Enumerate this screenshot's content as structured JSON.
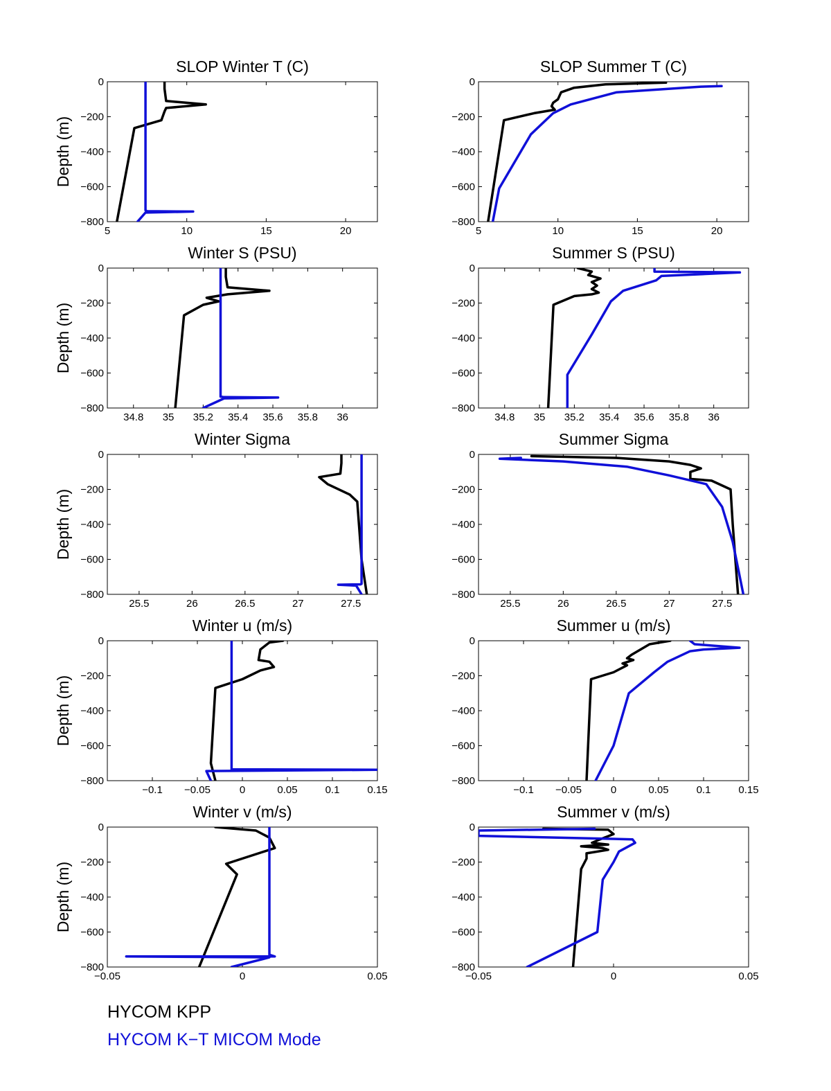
{
  "chart_data": [
    {
      "type": "line",
      "title": "SLOP Winter T (C)",
      "xlabel": "",
      "ylabel": "Depth (m)",
      "xlim": [
        5,
        22
      ],
      "ylim": [
        -800,
        0
      ],
      "xticks": [
        5,
        10,
        15,
        20
      ],
      "xtick_labels": [
        "5",
        "10",
        "15",
        "20"
      ],
      "yticks": [
        -800,
        -600,
        -400,
        -200,
        0
      ],
      "ytick_labels": [
        "−800",
        "−600",
        "−400",
        "−200",
        "0"
      ],
      "series": [
        {
          "name": "HYCOM KPP",
          "color": "#000000",
          "x": [
            8.6,
            8.6,
            8.7,
            11.2,
            8.7,
            8.6,
            8.4,
            6.7,
            5.6
          ],
          "y": [
            0,
            -40,
            -110,
            -130,
            -150,
            -170,
            -220,
            -265,
            -800
          ]
        },
        {
          "name": "HYCOM K-T MICOM Mode",
          "color": "#1010d8",
          "x": [
            7.4,
            7.4,
            7.5,
            10.4,
            7.4,
            6.9
          ],
          "y": [
            0,
            -735,
            -740,
            -742,
            -748,
            -800
          ]
        }
      ]
    },
    {
      "type": "line",
      "title": "SLOP Summer T (C)",
      "xlabel": "",
      "ylabel": "",
      "xlim": [
        5,
        22
      ],
      "ylim": [
        -800,
        0
      ],
      "xticks": [
        5,
        10,
        15,
        20
      ],
      "xtick_labels": [
        "5",
        "10",
        "15",
        "20"
      ],
      "yticks": [
        -800,
        -600,
        -400,
        -200,
        0
      ],
      "ytick_labels": [
        "−800",
        "−600",
        "−400",
        "−200",
        "0"
      ],
      "series": [
        {
          "name": "HYCOM KPP",
          "color": "#000000",
          "x": [
            16.8,
            13.0,
            11.0,
            10.2,
            10.1,
            10.0,
            9.7,
            9.6,
            9.8,
            8.5,
            6.6,
            5.6
          ],
          "y": [
            -5,
            -15,
            -35,
            -60,
            -80,
            -100,
            -120,
            -140,
            -160,
            -180,
            -220,
            -800
          ]
        },
        {
          "name": "HYCOM K-T MICOM Mode",
          "color": "#1010d8",
          "x": [
            20.3,
            19.0,
            13.7,
            10.8,
            9.7,
            8.3,
            6.3,
            5.9
          ],
          "y": [
            -25,
            -28,
            -60,
            -130,
            -180,
            -300,
            -610,
            -800
          ]
        }
      ]
    },
    {
      "type": "line",
      "title": "Winter S (PSU)",
      "xlabel": "",
      "ylabel": "Depth (m)",
      "xlim": [
        34.65,
        36.2
      ],
      "ylim": [
        -800,
        0
      ],
      "xticks": [
        34.8,
        35,
        35.2,
        35.4,
        35.6,
        35.8,
        36
      ],
      "xtick_labels": [
        "34.8",
        "35",
        "35.2",
        "35.4",
        "35.6",
        "35.8",
        "36"
      ],
      "yticks": [
        -800,
        -600,
        -400,
        -200,
        0
      ],
      "ytick_labels": [
        "−800",
        "−600",
        "−400",
        "−200",
        "0"
      ],
      "series": [
        {
          "name": "HYCOM KPP",
          "color": "#000000",
          "x": [
            35.33,
            35.33,
            35.34,
            35.58,
            35.34,
            35.22,
            35.29,
            35.2,
            35.09,
            35.04
          ],
          "y": [
            0,
            -50,
            -110,
            -130,
            -150,
            -170,
            -190,
            -210,
            -270,
            -800
          ]
        },
        {
          "name": "HYCOM K-T MICOM Mode",
          "color": "#1010d8",
          "x": [
            35.3,
            35.3,
            35.32,
            35.63,
            35.32,
            35.2
          ],
          "y": [
            0,
            -735,
            -738,
            -740,
            -745,
            -800
          ]
        }
      ]
    },
    {
      "type": "line",
      "title": "Summer S (PSU)",
      "xlabel": "",
      "ylabel": "",
      "xlim": [
        34.65,
        36.2
      ],
      "ylim": [
        -800,
        0
      ],
      "xticks": [
        34.8,
        35,
        35.2,
        35.4,
        35.6,
        35.8,
        36
      ],
      "xtick_labels": [
        "34.8",
        "35",
        "35.2",
        "35.4",
        "35.6",
        "35.8",
        "36"
      ],
      "yticks": [
        -800,
        -600,
        -400,
        -200,
        0
      ],
      "ytick_labels": [
        "−800",
        "−600",
        "−400",
        "−200",
        "0"
      ],
      "series": [
        {
          "name": "HYCOM KPP",
          "color": "#000000",
          "x": [
            35.22,
            35.3,
            35.28,
            35.35,
            35.3,
            35.33,
            35.3,
            35.34,
            35.3,
            35.2,
            35.08,
            35.05
          ],
          "y": [
            0,
            -20,
            -40,
            -60,
            -80,
            -100,
            -120,
            -140,
            -150,
            -160,
            -210,
            -800
          ]
        },
        {
          "name": "HYCOM K-T MICOM Mode",
          "color": "#1010d8",
          "x": [
            35.66,
            35.66,
            36.15,
            35.7,
            35.67,
            35.48,
            35.41,
            35.3,
            35.16,
            35.16
          ],
          "y": [
            0,
            -20,
            -25,
            -45,
            -70,
            -130,
            -190,
            -380,
            -610,
            -800
          ]
        }
      ]
    },
    {
      "type": "line",
      "title": "Winter Sigma",
      "xlabel": "",
      "ylabel": "Depth (m)",
      "xlim": [
        25.2,
        27.75
      ],
      "ylim": [
        -800,
        0
      ],
      "xticks": [
        25.5,
        26,
        26.5,
        27,
        27.5
      ],
      "xtick_labels": [
        "25.5",
        "26",
        "26.5",
        "27",
        "27.5"
      ],
      "yticks": [
        -800,
        -600,
        -400,
        -200,
        0
      ],
      "ytick_labels": [
        "−800",
        "−600",
        "−400",
        "−200",
        "0"
      ],
      "series": [
        {
          "name": "HYCOM KPP",
          "color": "#000000",
          "x": [
            27.41,
            27.41,
            27.4,
            27.2,
            27.28,
            27.49,
            27.56,
            27.6,
            27.65
          ],
          "y": [
            0,
            -50,
            -110,
            -130,
            -170,
            -230,
            -270,
            -600,
            -800
          ]
        },
        {
          "name": "HYCOM K-T MICOM Mode",
          "color": "#1010d8",
          "x": [
            27.6,
            27.6,
            27.59,
            27.38,
            27.55,
            27.6
          ],
          "y": [
            0,
            -740,
            -743,
            -745,
            -750,
            -800
          ]
        }
      ]
    },
    {
      "type": "line",
      "title": "Summer Sigma",
      "xlabel": "",
      "ylabel": "",
      "xlim": [
        25.2,
        27.75
      ],
      "ylim": [
        -800,
        0
      ],
      "xticks": [
        25.5,
        26,
        26.5,
        27,
        27.5
      ],
      "xtick_labels": [
        "25.5",
        "26",
        "26.5",
        "27",
        "27.5"
      ],
      "yticks": [
        -800,
        -600,
        -400,
        -200,
        0
      ],
      "ytick_labels": [
        "−800",
        "−600",
        "−400",
        "−200",
        "0"
      ],
      "series": [
        {
          "name": "HYCOM KPP",
          "color": "#000000",
          "x": [
            25.7,
            26.5,
            27.0,
            27.2,
            27.3,
            27.2,
            27.2,
            27.4,
            27.58,
            27.6,
            27.65
          ],
          "y": [
            -10,
            -20,
            -40,
            -60,
            -80,
            -100,
            -140,
            -150,
            -200,
            -400,
            -800
          ]
        },
        {
          "name": "HYCOM K-T MICOM Mode",
          "color": "#1010d8",
          "x": [
            25.6,
            25.4,
            26.0,
            26.6,
            27.0,
            27.35,
            27.5,
            27.6,
            27.7
          ],
          "y": [
            -20,
            -25,
            -40,
            -70,
            -120,
            -170,
            -300,
            -500,
            -800
          ]
        }
      ]
    },
    {
      "type": "line",
      "title": "Winter u (m/s)",
      "xlabel": "",
      "ylabel": "Depth (m)",
      "xlim": [
        -0.15,
        0.15
      ],
      "ylim": [
        -800,
        0
      ],
      "xticks": [
        -0.1,
        -0.05,
        0,
        0.05,
        0.1,
        0.15
      ],
      "xtick_labels": [
        "−0.1",
        "−0.05",
        "0",
        "0.05",
        "0.1",
        "0.15"
      ],
      "yticks": [
        -800,
        -600,
        -400,
        -200,
        0
      ],
      "ytick_labels": [
        "−800",
        "−600",
        "−400",
        "−200",
        "0"
      ],
      "series": [
        {
          "name": "HYCOM KPP",
          "color": "#000000",
          "x": [
            0.045,
            0.03,
            0.02,
            0.018,
            0.03,
            0.035,
            0.02,
            0.0,
            -0.03,
            -0.035,
            -0.03
          ],
          "y": [
            0,
            -10,
            -50,
            -110,
            -120,
            -150,
            -170,
            -220,
            -270,
            -700,
            -800
          ]
        },
        {
          "name": "HYCOM K-T MICOM Mode",
          "color": "#1010d8",
          "x": [
            -0.012,
            -0.012,
            0.15,
            -0.04,
            -0.035
          ],
          "y": [
            0,
            -735,
            -738,
            -745,
            -800
          ]
        }
      ]
    },
    {
      "type": "line",
      "title": "Summer u (m/s)",
      "xlabel": "",
      "ylabel": "",
      "xlim": [
        -0.15,
        0.15
      ],
      "ylim": [
        -800,
        0
      ],
      "xticks": [
        -0.1,
        -0.05,
        0,
        0.05,
        0.1,
        0.15
      ],
      "xtick_labels": [
        "−0.1",
        "−0.05",
        "0",
        "0.05",
        "0.1",
        "0.15"
      ],
      "yticks": [
        -800,
        -600,
        -400,
        -200,
        0
      ],
      "ytick_labels": [
        "−800",
        "−600",
        "−400",
        "−200",
        "0"
      ],
      "series": [
        {
          "name": "HYCOM KPP",
          "color": "#000000",
          "x": [
            0.063,
            0.04,
            0.03,
            0.02,
            0.015,
            0.022,
            0.01,
            0.015,
            0.0,
            -0.025,
            -0.03
          ],
          "y": [
            0,
            -20,
            -50,
            -80,
            -100,
            -110,
            -130,
            -140,
            -180,
            -220,
            -800
          ]
        },
        {
          "name": "HYCOM K-T MICOM Mode",
          "color": "#1010d8",
          "x": [
            0.085,
            0.09,
            0.14,
            0.1,
            0.085,
            0.06,
            0.045,
            0.017,
            0.0,
            -0.02
          ],
          "y": [
            0,
            -20,
            -40,
            -50,
            -60,
            -120,
            -180,
            -300,
            -600,
            -800
          ]
        }
      ]
    },
    {
      "type": "line",
      "title": "Winter v (m/s)",
      "xlabel": "",
      "ylabel": "Depth (m)",
      "xlim": [
        -0.05,
        0.05
      ],
      "ylim": [
        -800,
        0
      ],
      "xticks": [
        -0.05,
        0,
        0.05
      ],
      "xtick_labels": [
        "−0.05",
        "0",
        "0.05"
      ],
      "yticks": [
        -800,
        -600,
        -400,
        -200,
        0
      ],
      "ytick_labels": [
        "−800",
        "−600",
        "−400",
        "−200",
        "0"
      ],
      "series": [
        {
          "name": "HYCOM KPP",
          "color": "#000000",
          "x": [
            -0.01,
            0.005,
            0.01,
            0.012,
            -0.006,
            -0.002,
            -0.016
          ],
          "y": [
            0,
            -20,
            -60,
            -120,
            -210,
            -270,
            -800
          ]
        },
        {
          "name": "HYCOM K-T MICOM Mode",
          "color": "#1010d8",
          "x": [
            0.01,
            0.01,
            0.012,
            -0.043,
            0.01,
            -0.004
          ],
          "y": [
            0,
            -730,
            -740,
            -740,
            -745,
            -800
          ]
        }
      ]
    },
    {
      "type": "line",
      "title": "Summer v (m/s)",
      "xlabel": "",
      "ylabel": "",
      "xlim": [
        -0.05,
        0.05
      ],
      "ylim": [
        -800,
        0
      ],
      "xticks": [
        -0.05,
        0,
        0.05
      ],
      "xtick_labels": [
        "−0.05",
        "0",
        "0.05"
      ],
      "yticks": [
        -800,
        -600,
        -400,
        -200,
        0
      ],
      "ytick_labels": [
        "−800",
        "−600",
        "−400",
        "−200",
        "0"
      ],
      "series": [
        {
          "name": "HYCOM KPP",
          "color": "#000000",
          "x": [
            -0.026,
            -0.002,
            0.0,
            -0.005,
            -0.008,
            -0.002,
            -0.012,
            -0.004,
            -0.002,
            -0.01,
            -0.01,
            -0.012,
            -0.015
          ],
          "y": [
            -10,
            -15,
            -40,
            -70,
            -90,
            -100,
            -110,
            -120,
            -130,
            -150,
            -180,
            -240,
            -800
          ]
        },
        {
          "name": "HYCOM K-T MICOM Mode",
          "color": "#1010d8",
          "x": [
            -0.007,
            -0.05,
            -0.05,
            0.007,
            0.008,
            0.002,
            0.0,
            -0.004,
            -0.006,
            -0.032
          ],
          "y": [
            -10,
            -20,
            -50,
            -70,
            -90,
            -140,
            -200,
            -300,
            -600,
            -800
          ]
        }
      ]
    }
  ],
  "legend": [
    {
      "label": "HYCOM KPP",
      "color": "#000000"
    },
    {
      "label": "HYCOM K−T MICOM Mode",
      "color": "#1010d8"
    }
  ]
}
